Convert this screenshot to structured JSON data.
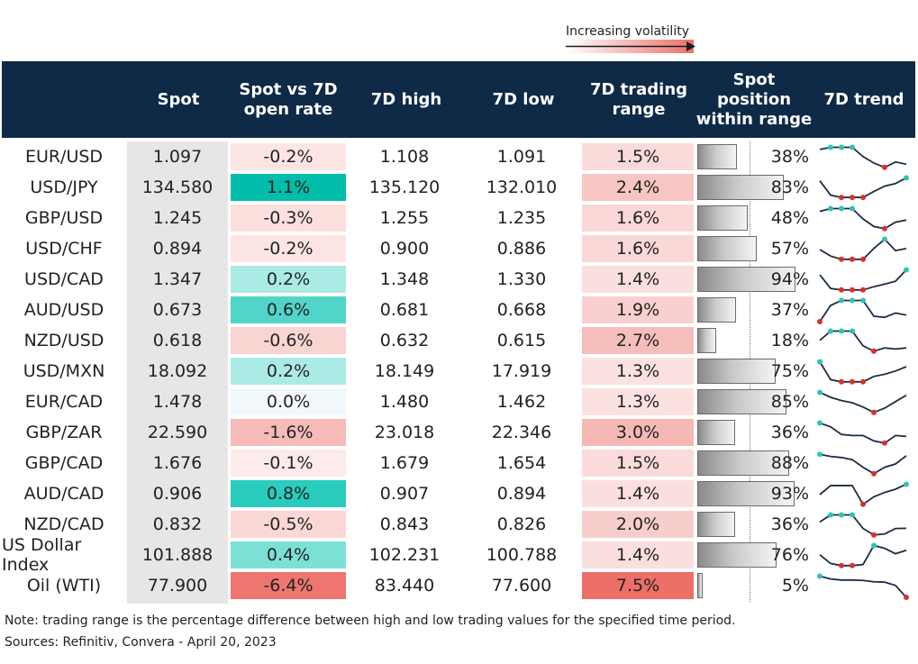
{
  "legend": {
    "volatility_label": "Increasing volatility"
  },
  "headers": {
    "spot": "Spot",
    "spot_vs_open_line1": "Spot vs 7D",
    "spot_vs_open_line2": "open rate",
    "high": "7D high",
    "low": "7D low",
    "range_line1": "7D trading",
    "range_line2": "range",
    "position_line1": "Spot",
    "position_line2": "position",
    "position_line3": "within range",
    "trend": "7D trend"
  },
  "colors": {
    "header_bg": "#0f2a47",
    "positive_strong": "#00c2b0",
    "negative_strong": "#ec6f68",
    "marker_high": "#2ec4b6",
    "marker_low": "#d9302a",
    "trend_line": "#1c2d44"
  },
  "chart_data": {
    "type": "table",
    "columns": [
      "Spot",
      "Spot vs 7D open rate",
      "7D high",
      "7D low",
      "7D trading range",
      "Spot position within range",
      "7D trend"
    ],
    "rows": [
      {
        "pair": "EUR/USD",
        "spot": "1.097",
        "vs_open": "-0.2%",
        "vs_open_value": -0.2,
        "high": "1.108",
        "low": "1.091",
        "range": "1.5%",
        "range_value": 1.5,
        "position": "38%",
        "position_value": 38,
        "trend": [
          0.88,
          0.98,
          0.98,
          0.98,
          0.55,
          0.25,
          0.05,
          0.3,
          0.2
        ]
      },
      {
        "pair": "USD/JPY",
        "spot": "134.580",
        "vs_open": "1.1%",
        "vs_open_value": 1.1,
        "high": "135.120",
        "low": "132.010",
        "range": "2.4%",
        "range_value": 2.4,
        "position": "83%",
        "position_value": 83,
        "trend": [
          0.85,
          0.18,
          0.08,
          0.08,
          0.08,
          0.35,
          0.6,
          0.72,
          0.98
        ]
      },
      {
        "pair": "GBP/USD",
        "spot": "1.245",
        "vs_open": "-0.3%",
        "vs_open_value": -0.3,
        "high": "1.255",
        "low": "1.235",
        "range": "1.6%",
        "range_value": 1.6,
        "position": "48%",
        "position_value": 48,
        "trend": [
          0.85,
          0.98,
          0.98,
          0.98,
          0.5,
          0.15,
          0.05,
          0.35,
          0.45
        ]
      },
      {
        "pair": "USD/CHF",
        "spot": "0.894",
        "vs_open": "-0.2%",
        "vs_open_value": -0.2,
        "high": "0.900",
        "low": "0.886",
        "range": "1.6%",
        "range_value": 1.6,
        "position": "57%",
        "position_value": 57,
        "trend": [
          0.5,
          0.2,
          0.05,
          0.05,
          0.05,
          0.55,
          0.98,
          0.45,
          0.55
        ]
      },
      {
        "pair": "USD/CAD",
        "spot": "1.347",
        "vs_open": "0.2%",
        "vs_open_value": 0.2,
        "high": "1.348",
        "low": "1.330",
        "range": "1.4%",
        "range_value": 1.4,
        "position": "94%",
        "position_value": 94,
        "trend": [
          0.75,
          0.12,
          0.05,
          0.05,
          0.05,
          0.2,
          0.32,
          0.45,
          0.98
        ]
      },
      {
        "pair": "AUD/USD",
        "spot": "0.673",
        "vs_open": "0.6%",
        "vs_open_value": 0.6,
        "high": "0.681",
        "low": "0.668",
        "range": "1.9%",
        "range_value": 1.9,
        "position": "37%",
        "position_value": 37,
        "trend": [
          0.0,
          0.75,
          0.98,
          0.98,
          0.98,
          0.25,
          0.2,
          0.4,
          0.3
        ]
      },
      {
        "pair": "NZD/USD",
        "spot": "0.618",
        "vs_open": "-0.6%",
        "vs_open_value": -0.6,
        "high": "0.632",
        "low": "0.615",
        "range": "2.7%",
        "range_value": 2.7,
        "position": "18%",
        "position_value": 18,
        "trend": [
          0.55,
          0.98,
          0.98,
          0.98,
          0.3,
          0.05,
          0.2,
          0.15,
          0.2
        ]
      },
      {
        "pair": "USD/MXN",
        "spot": "18.092",
        "vs_open": "0.2%",
        "vs_open_value": 0.2,
        "high": "18.149",
        "low": "17.919",
        "range": "1.3%",
        "range_value": 1.3,
        "position": "75%",
        "position_value": 75,
        "trend": [
          0.98,
          0.15,
          0.05,
          0.05,
          0.05,
          0.3,
          0.4,
          0.55,
          0.75
        ]
      },
      {
        "pair": "EUR/CAD",
        "spot": "1.478",
        "vs_open": "0.0%",
        "vs_open_value": 0.0,
        "high": "1.480",
        "low": "1.462",
        "range": "1.3%",
        "range_value": 1.3,
        "position": "85%",
        "position_value": 85,
        "trend": [
          0.98,
          0.75,
          0.6,
          0.5,
          0.3,
          0.05,
          0.25,
          0.55,
          0.85
        ]
      },
      {
        "pair": "GBP/ZAR",
        "spot": "22.590",
        "vs_open": "-1.6%",
        "vs_open_value": -1.6,
        "high": "23.018",
        "low": "22.346",
        "range": "3.0%",
        "range_value": 3.0,
        "position": "36%",
        "position_value": 36,
        "trend": [
          0.98,
          0.8,
          0.45,
          0.4,
          0.4,
          0.15,
          0.05,
          0.4,
          0.36
        ]
      },
      {
        "pair": "GBP/CAD",
        "spot": "1.676",
        "vs_open": "-0.1%",
        "vs_open_value": -0.1,
        "high": "1.679",
        "low": "1.654",
        "range": "1.5%",
        "range_value": 1.5,
        "position": "88%",
        "position_value": 88,
        "trend": [
          0.95,
          0.85,
          0.8,
          0.7,
          0.35,
          0.05,
          0.35,
          0.5,
          0.88
        ]
      },
      {
        "pair": "AUD/CAD",
        "spot": "0.906",
        "vs_open": "0.8%",
        "vs_open_value": 0.8,
        "high": "0.907",
        "low": "0.894",
        "range": "1.4%",
        "range_value": 1.4,
        "position": "93%",
        "position_value": 93,
        "trend": [
          0.5,
          0.92,
          0.92,
          0.92,
          0.05,
          0.4,
          0.6,
          0.75,
          0.98
        ]
      },
      {
        "pair": "NZD/CAD",
        "spot": "0.832",
        "vs_open": "-0.5%",
        "vs_open_value": -0.5,
        "high": "0.843",
        "low": "0.826",
        "range": "2.0%",
        "range_value": 2.0,
        "position": "36%",
        "position_value": 36,
        "trend": [
          0.65,
          0.98,
          0.98,
          0.98,
          0.35,
          0.05,
          0.1,
          0.35,
          0.36
        ]
      },
      {
        "pair": "US Dollar Index",
        "spot": "101.888",
        "vs_open": "0.4%",
        "vs_open_value": 0.4,
        "high": "102.231",
        "low": "100.788",
        "range": "1.4%",
        "range_value": 1.4,
        "position": "76%",
        "position_value": 76,
        "trend": [
          0.55,
          0.15,
          0.05,
          0.05,
          0.1,
          0.98,
          0.85,
          0.6,
          0.76
        ]
      },
      {
        "pair": "Oil (WTI)",
        "spot": "77.900",
        "vs_open": "-6.4%",
        "vs_open_value": -6.4,
        "high": "83.440",
        "low": "77.600",
        "range": "7.5%",
        "range_value": 7.5,
        "position": "5%",
        "position_value": 5,
        "trend": [
          0.98,
          0.85,
          0.8,
          0.8,
          0.78,
          0.72,
          0.7,
          0.55,
          0.0
        ]
      }
    ]
  },
  "footer": {
    "note": "Note: trading range is the percentage difference between high and low trading values for the specified time period.",
    "sources": "Sources: Refinitiv, Convera - April 20, 2023"
  }
}
